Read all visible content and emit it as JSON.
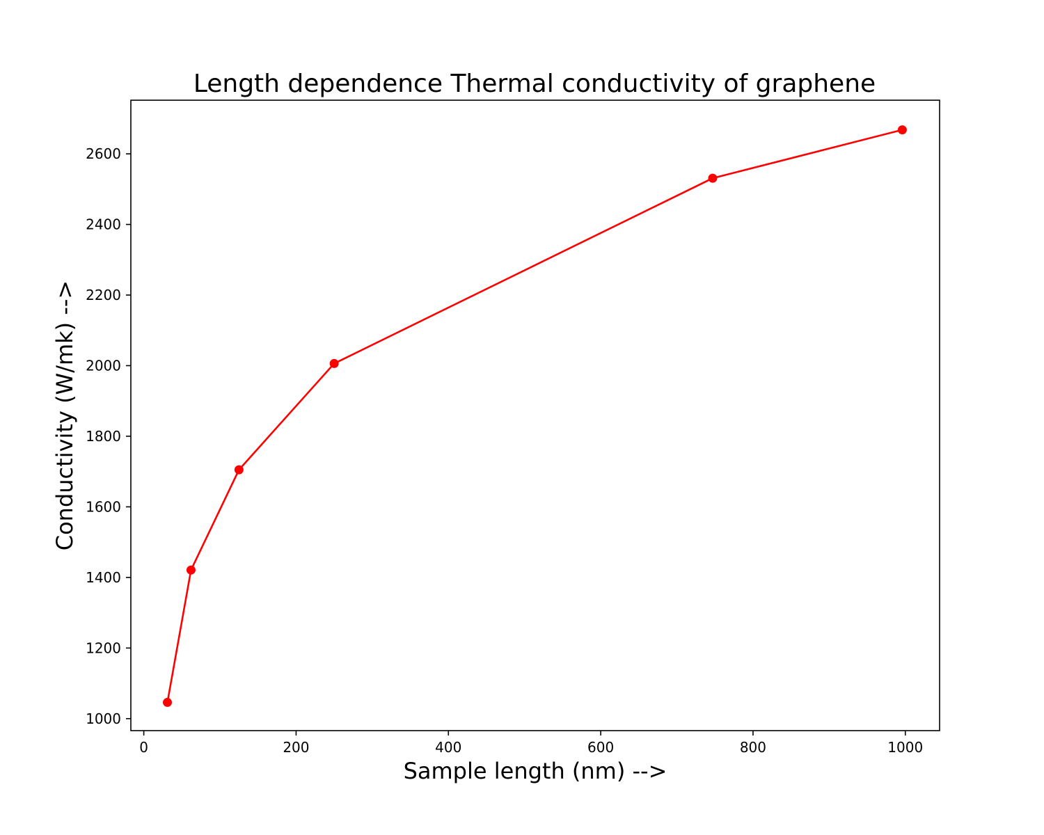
{
  "chart_data": {
    "type": "line",
    "title": "Length dependence Thermal conductivity of graphene",
    "xlabel": "Sample length (nm) -->",
    "ylabel": "Conductivity (W/mk) -->",
    "xlim": [
      -17,
      1045
    ],
    "ylim": [
      966,
      2752
    ],
    "xticks": [
      0,
      200,
      400,
      600,
      800,
      1000
    ],
    "yticks": [
      1000,
      1200,
      1400,
      1600,
      1800,
      2000,
      2200,
      2400,
      2600
    ],
    "grid": false,
    "legend": "none",
    "series": [
      {
        "x": [
          31,
          62,
          125,
          250,
          747,
          996
        ],
        "y": [
          1046,
          1421,
          1705,
          2006,
          2531,
          2668
        ],
        "color": "#ff0000",
        "marker": "circle"
      }
    ]
  }
}
